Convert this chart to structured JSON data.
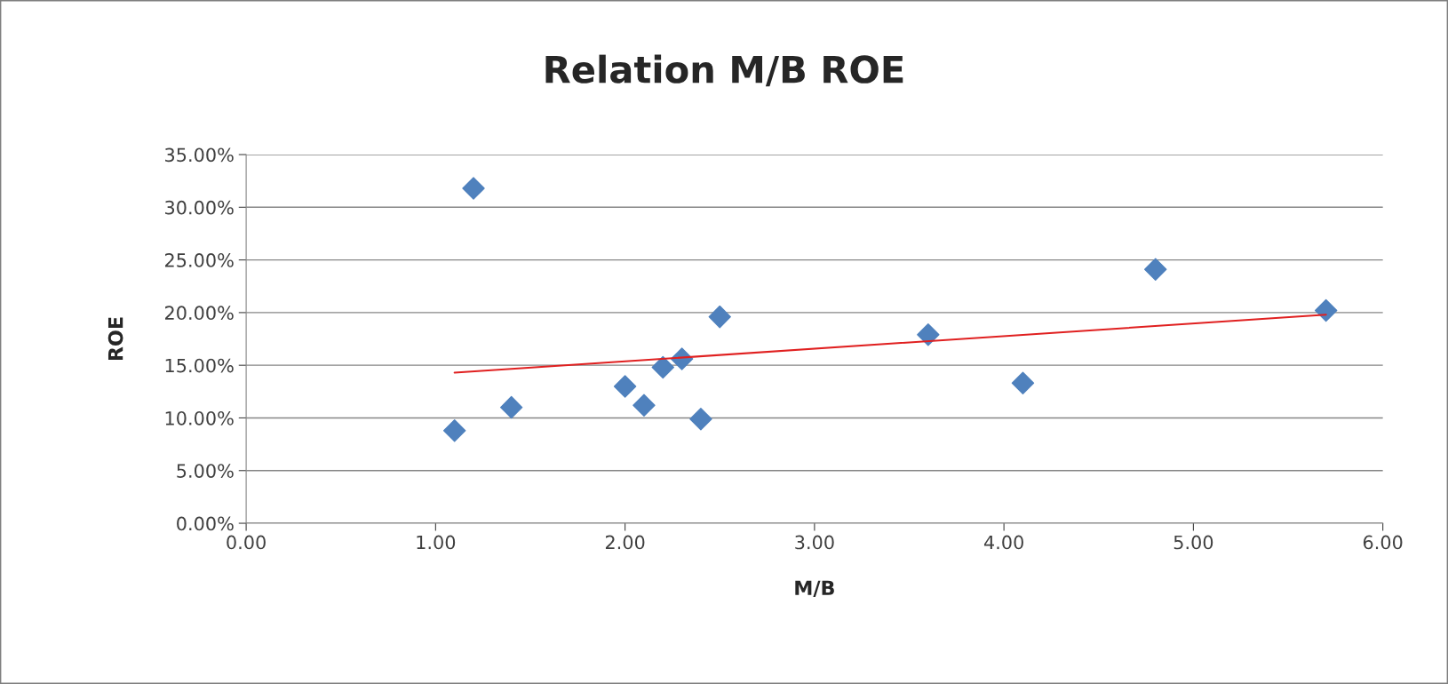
{
  "chart_data": {
    "type": "scatter",
    "title": "Relation M/B ROE",
    "xlabel": "M/B",
    "ylabel": "ROE",
    "series": [
      {
        "color": "#4f81bd",
        "marker": "diamond",
        "x": [
          1.1,
          1.2,
          1.4,
          2.0,
          2.1,
          2.2,
          2.3,
          2.4,
          2.5,
          3.6,
          4.1,
          4.8,
          5.7
        ],
        "values": [
          8.8,
          31.8,
          11.0,
          13.0,
          11.2,
          14.8,
          15.6,
          9.9,
          19.6,
          17.9,
          13.3,
          24.1,
          20.2
        ]
      },
      {
        "type": "line",
        "color": "#e02020",
        "marker": "none",
        "x": [
          1.1,
          5.7
        ],
        "values": [
          14.3,
          19.8
        ]
      }
    ],
    "xlim": [
      0,
      6
    ],
    "xticks": [
      {
        "value": 0,
        "label": "0.00"
      },
      {
        "value": 1,
        "label": "1.00"
      },
      {
        "value": 2,
        "label": "2.00"
      },
      {
        "value": 3,
        "label": "3.00"
      },
      {
        "value": 4,
        "label": "4.00"
      },
      {
        "value": 5,
        "label": "5.00"
      },
      {
        "value": 6,
        "label": "6.00"
      }
    ],
    "ylim": [
      0,
      35
    ],
    "yticks": [
      {
        "value": 0,
        "label": "0.00%"
      },
      {
        "value": 5,
        "label": "5.00%"
      },
      {
        "value": 10,
        "label": "10.00%"
      },
      {
        "value": 15,
        "label": "15.00%"
      },
      {
        "value": 20,
        "label": "20.00%"
      },
      {
        "value": 25,
        "label": "25.00%"
      },
      {
        "value": 30,
        "label": "30.00%"
      },
      {
        "value": 35,
        "label": "35.00%"
      }
    ],
    "grid": "y",
    "legend": false
  }
}
